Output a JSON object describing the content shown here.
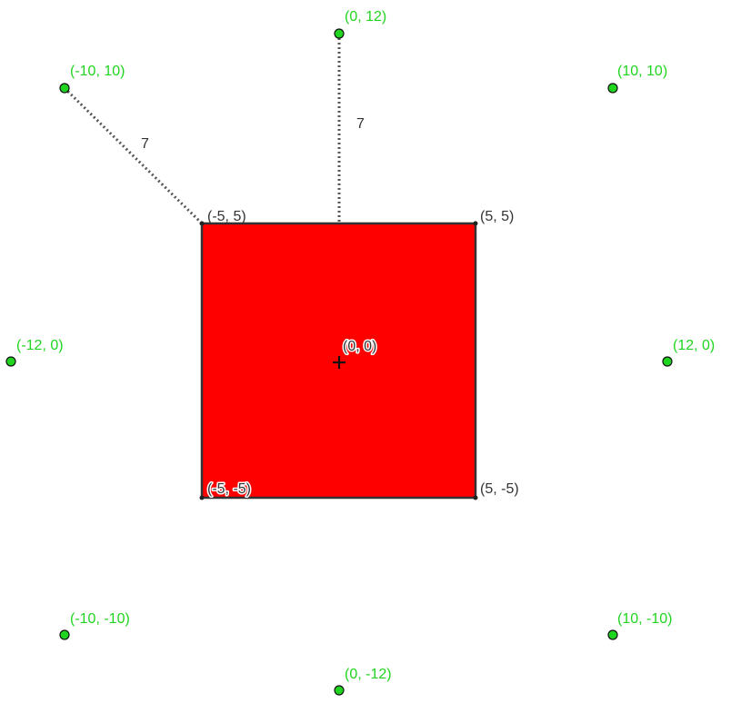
{
  "square": {
    "fill": "#ff0000",
    "stroke": "#333333",
    "corners": [
      {
        "label": "(-5, 5)"
      },
      {
        "label": "(5, 5)"
      },
      {
        "label": "(5, -5)"
      },
      {
        "label": "(-5, -5)"
      }
    ],
    "center_label": "(0, 0)"
  },
  "points": {
    "color": "#1fd51f",
    "items": [
      {
        "label": "(0, 12)"
      },
      {
        "label": "(-10, 10)"
      },
      {
        "label": "(10, 10)"
      },
      {
        "label": "(-12, 0)"
      },
      {
        "label": "(12, 0)"
      },
      {
        "label": "(-10, -10)"
      },
      {
        "label": "(10, -10)"
      },
      {
        "label": "(0, -12)"
      }
    ]
  },
  "dimensions": [
    {
      "label": "7"
    },
    {
      "label": "7"
    }
  ]
}
